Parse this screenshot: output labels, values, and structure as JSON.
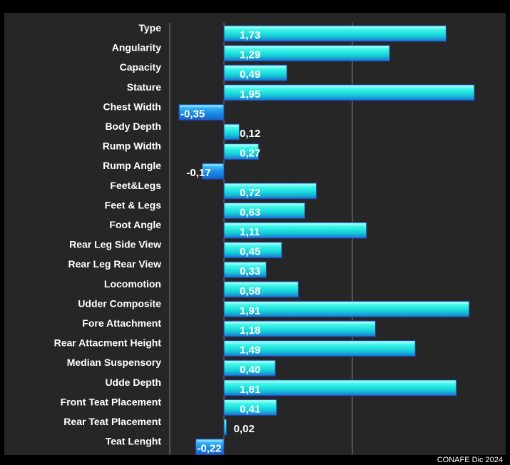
{
  "chart_data": {
    "type": "bar",
    "orientation": "horizontal",
    "categories": [
      "Type",
      "Angularity",
      "Capacity",
      "Stature",
      "Chest Width",
      "Body Depth",
      "Rump Width",
      "Rump Angle",
      "Feet&Legs",
      "Feet & Legs",
      "Foot Angle",
      "Rear Leg Side View",
      "Rear Leg Rear View",
      "Locomotion",
      "Udder Composite",
      "Fore Attachment",
      "Rear Attacment Height",
      "Median Suspensory",
      "Udde Depth",
      "Front Teat Placement",
      "Rear Teat Placement",
      "Teat Lenght"
    ],
    "values": [
      1.73,
      1.29,
      0.49,
      1.95,
      -0.35,
      0.12,
      0.27,
      -0.17,
      0.72,
      0.63,
      1.11,
      0.45,
      0.33,
      0.58,
      1.91,
      1.18,
      1.49,
      0.4,
      1.81,
      0.41,
      0.02,
      -0.22
    ],
    "value_labels": [
      "1,73",
      "1,29",
      "0,49",
      "1,95",
      "-0,35",
      "0,12",
      "0,27",
      "-0,17",
      "0,72",
      "0,63",
      "1,11",
      "0,45",
      "0,33",
      "0,58",
      "1,91",
      "1,18",
      "1,49",
      "0,40",
      "1,81",
      "0,41",
      "0,02",
      "-0,22"
    ],
    "xlim": [
      -0.35,
      1.7
    ],
    "gridlines": [
      0,
      1
    ],
    "grid": true,
    "legend": "none",
    "colors": {
      "bar_light": "#2ef0e4",
      "bar_mid": "#14c6d6",
      "bar_dark": "#1a6fd6",
      "bar_edge": "#2a3fa8",
      "grid": "#7f7f7f",
      "background": "#262626"
    }
  },
  "footer": {
    "source": "CONAFE Dic 2024"
  }
}
